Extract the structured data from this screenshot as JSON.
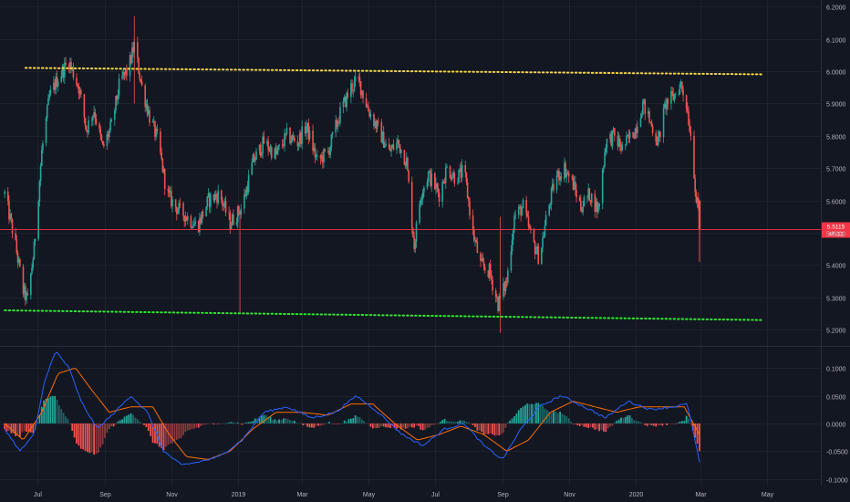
{
  "chart_data": [
    {
      "type": "candlestick",
      "panel": "price",
      "ylim": [
        5.15,
        6.22
      ],
      "y_ticks": [
        "6.2000",
        "6.1000",
        "6.0000",
        "5.9000",
        "5.8000",
        "5.7000",
        "5.6000",
        "5.5000",
        "5.4000",
        "5.3000",
        "5.2000"
      ],
      "y_tick_values": [
        6.2,
        6.1,
        6.0,
        5.9,
        5.8,
        5.7,
        5.6,
        5.5,
        5.4,
        5.3,
        5.2
      ],
      "x_tick_labels": [
        "Jul",
        "Sep",
        "Nov",
        "2019",
        "Mar",
        "May",
        "Jul",
        "Sep",
        "Nov",
        "2020",
        "Mar",
        "May"
      ],
      "x_tick_dates": [
        "2018-07-01",
        "2018-09-01",
        "2018-11-01",
        "2019-01-01",
        "2019-03-01",
        "2019-05-01",
        "2019-07-01",
        "2019-09-01",
        "2019-11-01",
        "2020-01-01",
        "2020-03-01",
        "2020-05-01"
      ],
      "price_path": [
        [
          "2018-06-01",
          5.62
        ],
        [
          "2018-06-10",
          5.48
        ],
        [
          "2018-06-18",
          5.32
        ],
        [
          "2018-06-22",
          5.29
        ],
        [
          "2018-06-28",
          5.45
        ],
        [
          "2018-07-05",
          5.75
        ],
        [
          "2018-07-12",
          5.92
        ],
        [
          "2018-07-20",
          5.98
        ],
        [
          "2018-07-30",
          6.03
        ],
        [
          "2018-08-08",
          5.95
        ],
        [
          "2018-08-15",
          5.82
        ],
        [
          "2018-08-22",
          5.88
        ],
        [
          "2018-08-30",
          5.76
        ],
        [
          "2018-09-07",
          5.83
        ],
        [
          "2018-09-15",
          5.97
        ],
        [
          "2018-09-22",
          6.0
        ],
        [
          "2018-09-28",
          6.08
        ],
        [
          "2018-10-05",
          5.95
        ],
        [
          "2018-10-12",
          5.86
        ],
        [
          "2018-10-20",
          5.78
        ],
        [
          "2018-10-28",
          5.62
        ],
        [
          "2018-11-05",
          5.58
        ],
        [
          "2018-11-15",
          5.55
        ],
        [
          "2018-11-25",
          5.52
        ],
        [
          "2018-12-05",
          5.6
        ],
        [
          "2018-12-15",
          5.62
        ],
        [
          "2018-12-25",
          5.53
        ],
        [
          "2019-01-05",
          5.58
        ],
        [
          "2019-01-15",
          5.72
        ],
        [
          "2019-01-25",
          5.78
        ],
        [
          "2019-02-05",
          5.74
        ],
        [
          "2019-02-15",
          5.8
        ],
        [
          "2019-02-25",
          5.78
        ],
        [
          "2019-03-05",
          5.83
        ],
        [
          "2019-03-15",
          5.72
        ],
        [
          "2019-03-25",
          5.75
        ],
        [
          "2019-04-05",
          5.87
        ],
        [
          "2019-04-15",
          5.95
        ],
        [
          "2019-04-22",
          5.97
        ],
        [
          "2019-05-01",
          5.88
        ],
        [
          "2019-05-10",
          5.82
        ],
        [
          "2019-05-20",
          5.75
        ],
        [
          "2019-05-28",
          5.78
        ],
        [
          "2019-06-05",
          5.72
        ],
        [
          "2019-06-12",
          5.46
        ],
        [
          "2019-06-18",
          5.62
        ],
        [
          "2019-06-25",
          5.68
        ],
        [
          "2019-07-05",
          5.62
        ],
        [
          "2019-07-12",
          5.7
        ],
        [
          "2019-07-20",
          5.67
        ],
        [
          "2019-07-28",
          5.69
        ],
        [
          "2019-08-05",
          5.5
        ],
        [
          "2019-08-12",
          5.4
        ],
        [
          "2019-08-20",
          5.38
        ],
        [
          "2019-08-28",
          5.28
        ],
        [
          "2019-09-05",
          5.35
        ],
        [
          "2019-09-12",
          5.55
        ],
        [
          "2019-09-20",
          5.58
        ],
        [
          "2019-09-28",
          5.48
        ],
        [
          "2019-10-05",
          5.42
        ],
        [
          "2019-10-12",
          5.56
        ],
        [
          "2019-10-20",
          5.67
        ],
        [
          "2019-10-28",
          5.7
        ],
        [
          "2019-11-05",
          5.65
        ],
        [
          "2019-11-12",
          5.58
        ],
        [
          "2019-11-20",
          5.62
        ],
        [
          "2019-11-28",
          5.57
        ],
        [
          "2019-12-05",
          5.78
        ],
        [
          "2019-12-12",
          5.8
        ],
        [
          "2019-12-20",
          5.76
        ],
        [
          "2020-01-01",
          5.82
        ],
        [
          "2020-01-08",
          5.9
        ],
        [
          "2020-01-15",
          5.84
        ],
        [
          "2020-01-22",
          5.78
        ],
        [
          "2020-01-29",
          5.9
        ],
        [
          "2020-02-05",
          5.92
        ],
        [
          "2020-02-12",
          5.96
        ],
        [
          "2020-02-17",
          5.9
        ],
        [
          "2020-02-22",
          5.78
        ],
        [
          "2020-02-26",
          5.6
        ],
        [
          "2020-02-29",
          5.55
        ]
      ],
      "last_candle": {
        "date": "2020-02-29",
        "high": 5.6,
        "low": 5.41
      },
      "spikes": [
        {
          "date": "2018-09-28",
          "high": 6.17
        },
        {
          "date": "2019-01-03",
          "low": 5.25
        },
        {
          "date": "2019-08-30",
          "low": 5.19
        }
      ],
      "trendlines": [
        {
          "name": "resistance",
          "color": "#f5d547",
          "from": [
            "2018-06-20",
            6.01
          ],
          "to": [
            "2020-04-28",
            5.99
          ]
        },
        {
          "name": "support",
          "color": "#2ee82e",
          "from": [
            "2018-06-01",
            5.26
          ],
          "to": [
            "2020-04-28",
            5.23
          ]
        }
      ],
      "last_price": {
        "value": 5.5115,
        "label": "5.5115",
        "countdown": "46:32",
        "color": "#f23645"
      },
      "colors": {
        "up": "#26a69a",
        "down": "#ef5350"
      }
    },
    {
      "type": "macd",
      "panel": "indicator",
      "ylim": [
        -0.112,
        0.138
      ],
      "y_ticks": [
        "0.1000",
        "0.0500",
        "0.0000",
        "-0.0500",
        "-0.1000"
      ],
      "y_tick_values": [
        0.1,
        0.05,
        0.0,
        -0.05,
        -0.1
      ],
      "macd_path": [
        [
          "2018-06-01",
          -0.01
        ],
        [
          "2018-06-15",
          -0.05
        ],
        [
          "2018-06-28",
          -0.02
        ],
        [
          "2018-07-08",
          0.08
        ],
        [
          "2018-07-18",
          0.13
        ],
        [
          "2018-07-30",
          0.1
        ],
        [
          "2018-08-10",
          0.04
        ],
        [
          "2018-08-25",
          -0.01
        ],
        [
          "2018-09-10",
          0.02
        ],
        [
          "2018-09-25",
          0.05
        ],
        [
          "2018-10-10",
          0.02
        ],
        [
          "2018-10-25",
          -0.05
        ],
        [
          "2018-11-10",
          -0.075
        ],
        [
          "2018-11-25",
          -0.07
        ],
        [
          "2018-12-15",
          -0.06
        ],
        [
          "2019-01-05",
          -0.03
        ],
        [
          "2019-01-25",
          0.02
        ],
        [
          "2019-02-15",
          0.03
        ],
        [
          "2019-03-10",
          0.01
        ],
        [
          "2019-04-01",
          0.02
        ],
        [
          "2019-04-20",
          0.05
        ],
        [
          "2019-05-10",
          0.02
        ],
        [
          "2019-06-01",
          -0.02
        ],
        [
          "2019-06-20",
          -0.04
        ],
        [
          "2019-07-10",
          -0.01
        ],
        [
          "2019-07-28",
          0.0
        ],
        [
          "2019-08-15",
          -0.04
        ],
        [
          "2019-09-01",
          -0.065
        ],
        [
          "2019-09-18",
          -0.01
        ],
        [
          "2019-10-05",
          0.03
        ],
        [
          "2019-10-25",
          0.05
        ],
        [
          "2019-11-15",
          0.03
        ],
        [
          "2019-12-05",
          0.01
        ],
        [
          "2019-12-25",
          0.04
        ],
        [
          "2020-01-15",
          0.025
        ],
        [
          "2020-02-05",
          0.03
        ],
        [
          "2020-02-18",
          0.035
        ],
        [
          "2020-02-29",
          -0.07
        ]
      ],
      "signal_path": [
        [
          "2018-06-01",
          0.0
        ],
        [
          "2018-06-18",
          -0.03
        ],
        [
          "2018-07-05",
          0.02
        ],
        [
          "2018-07-20",
          0.09
        ],
        [
          "2018-08-05",
          0.1
        ],
        [
          "2018-08-20",
          0.06
        ],
        [
          "2018-09-05",
          0.02
        ],
        [
          "2018-09-25",
          0.03
        ],
        [
          "2018-10-15",
          0.03
        ],
        [
          "2018-10-30",
          -0.02
        ],
        [
          "2018-11-15",
          -0.06
        ],
        [
          "2018-12-05",
          -0.065
        ],
        [
          "2018-12-25",
          -0.05
        ],
        [
          "2019-01-15",
          -0.01
        ],
        [
          "2019-02-05",
          0.02
        ],
        [
          "2019-03-01",
          0.02
        ],
        [
          "2019-03-25",
          0.015
        ],
        [
          "2019-04-15",
          0.035
        ],
        [
          "2019-05-05",
          0.035
        ],
        [
          "2019-05-25",
          0.0
        ],
        [
          "2019-06-15",
          -0.03
        ],
        [
          "2019-07-05",
          -0.02
        ],
        [
          "2019-07-25",
          -0.005
        ],
        [
          "2019-08-15",
          -0.02
        ],
        [
          "2019-09-05",
          -0.05
        ],
        [
          "2019-09-25",
          -0.03
        ],
        [
          "2019-10-15",
          0.02
        ],
        [
          "2019-11-05",
          0.04
        ],
        [
          "2019-11-25",
          0.03
        ],
        [
          "2019-12-15",
          0.02
        ],
        [
          "2020-01-05",
          0.03
        ],
        [
          "2020-01-25",
          0.03
        ],
        [
          "2020-02-15",
          0.03
        ],
        [
          "2020-02-29",
          -0.02
        ]
      ],
      "colors": {
        "macd": "#2962ff",
        "signal": "#ff6d00",
        "hist_up": "#26a69a",
        "hist_down": "#ef5350"
      }
    }
  ]
}
